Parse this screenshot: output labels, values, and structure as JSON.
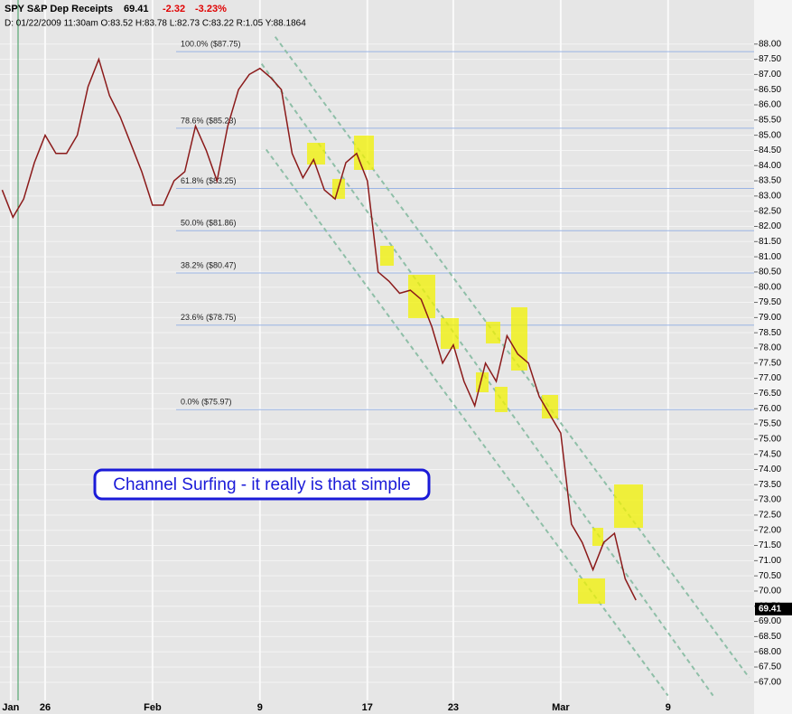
{
  "header": {
    "symbol": "SPY S&P Dep Receipts",
    "price": "69.41",
    "change": "-2.32",
    "change_pct": "-3.23%",
    "info": "D: 01/22/2009  11:30am  O:83.52  H:83.78  L:82.73  C:83.22  R:1.05  Y:88.1864"
  },
  "chart_data": {
    "type": "line",
    "annotation": "Channel Surfing - it really is that simple",
    "x": [
      -2,
      -1.5,
      -1,
      -0.5,
      0,
      0.5,
      1,
      1.5,
      2,
      2.5,
      3,
      3.5,
      4,
      4.5,
      5,
      5.5,
      6,
      6.5,
      7,
      7.5,
      8,
      8.5,
      9,
      9.5,
      10,
      10.5,
      11,
      11.5,
      12,
      12.5,
      13,
      13.5,
      14,
      14.5,
      15,
      15.5,
      16,
      16.5,
      17,
      17.5,
      18,
      18.5,
      19,
      19.5,
      20,
      20.5,
      21,
      21.5,
      22,
      22.5,
      23,
      23.5,
      24,
      24.5,
      25,
      25.5,
      26,
      26.5,
      27,
      27.5
    ],
    "values": [
      83.2,
      82.3,
      82.9,
      84.1,
      85.0,
      84.4,
      84.4,
      85.0,
      86.6,
      87.5,
      86.3,
      85.6,
      84.7,
      83.8,
      82.7,
      82.7,
      83.5,
      83.8,
      85.3,
      84.5,
      83.5,
      85.3,
      86.5,
      87.0,
      87.2,
      86.9,
      86.5,
      84.4,
      83.6,
      84.2,
      83.2,
      82.9,
      84.1,
      84.4,
      83.5,
      80.5,
      80.2,
      79.8,
      79.9,
      79.6,
      78.7,
      77.5,
      78.1,
      76.9,
      76.1,
      77.5,
      76.9,
      78.4,
      77.8,
      77.5,
      76.4,
      75.8,
      75.2,
      72.2,
      71.6,
      70.7,
      71.6,
      71.9,
      70.4,
      69.7
    ],
    "color": "#8b1a1a",
    "last": 69.41,
    "xlim": [
      -2.1,
      33
    ],
    "ylim": [
      66.4,
      88.35
    ],
    "xticks": [
      {
        "value": -1.6,
        "label": "Jan"
      },
      {
        "value": 0,
        "label": "26"
      },
      {
        "value": 5,
        "label": "Feb"
      },
      {
        "value": 10,
        "label": "9"
      },
      {
        "value": 15,
        "label": "17"
      },
      {
        "value": 19,
        "label": "23"
      },
      {
        "value": 24,
        "label": "Mar"
      },
      {
        "value": 29,
        "label": "9"
      }
    ],
    "yticks": [
      {
        "value": 67,
        "label": "67.00"
      },
      {
        "value": 67.5,
        "label": "67.50"
      },
      {
        "value": 68,
        "label": "68.00"
      },
      {
        "value": 68.5,
        "label": "68.50"
      },
      {
        "value": 69,
        "label": "69.00"
      },
      {
        "value": 69.5,
        "label": "69.50"
      },
      {
        "value": 70,
        "label": "70.00"
      },
      {
        "value": 70.5,
        "label": "70.50"
      },
      {
        "value": 71,
        "label": "71.00"
      },
      {
        "value": 71.5,
        "label": "71.50"
      },
      {
        "value": 72,
        "label": "72.00"
      },
      {
        "value": 72.5,
        "label": "72.50"
      },
      {
        "value": 73,
        "label": "73.00"
      },
      {
        "value": 73.5,
        "label": "73.50"
      },
      {
        "value": 74,
        "label": "74.00"
      },
      {
        "value": 74.5,
        "label": "74.50"
      },
      {
        "value": 75,
        "label": "75.00"
      },
      {
        "value": 75.5,
        "label": "75.50"
      },
      {
        "value": 76,
        "label": "76.00"
      },
      {
        "value": 76.5,
        "label": "76.50"
      },
      {
        "value": 77,
        "label": "77.00"
      },
      {
        "value": 77.5,
        "label": "77.50"
      },
      {
        "value": 78,
        "label": "78.00"
      },
      {
        "value": 78.5,
        "label": "78.50"
      },
      {
        "value": 79,
        "label": "79.00"
      },
      {
        "value": 79.5,
        "label": "79.50"
      },
      {
        "value": 80,
        "label": "80.00"
      },
      {
        "value": 80.5,
        "label": "80.50"
      },
      {
        "value": 81,
        "label": "81.00"
      },
      {
        "value": 81.5,
        "label": "81.50"
      },
      {
        "value": 82,
        "label": "82.00"
      },
      {
        "value": 82.5,
        "label": "82.50"
      },
      {
        "value": 83,
        "label": "83.00"
      },
      {
        "value": 83.5,
        "label": "83.50"
      },
      {
        "value": 84,
        "label": "84.00"
      },
      {
        "value": 84.5,
        "label": "84.50"
      },
      {
        "value": 85,
        "label": "85.00"
      },
      {
        "value": 85.5,
        "label": "85.50"
      },
      {
        "value": 86,
        "label": "86.00"
      },
      {
        "value": 86.5,
        "label": "86.50"
      },
      {
        "value": 87,
        "label": "87.00"
      },
      {
        "value": 87.5,
        "label": "87.50"
      },
      {
        "value": 88,
        "label": "88.00"
      }
    ],
    "fib_levels": [
      {
        "label": "100.0%  ($87.75)",
        "value": 87.75
      },
      {
        "label": "78.6%  ($85.23)",
        "value": 85.23
      },
      {
        "label": "61.8%  ($83.25)",
        "value": 83.25
      },
      {
        "label": "50.0%  ($81.86)",
        "value": 81.86
      },
      {
        "label": "38.2%  ($80.47)",
        "value": 80.47
      },
      {
        "label": "23.6%  ($78.75)",
        "value": 78.75
      },
      {
        "label": "0.0%  ($75.97)",
        "value": 75.97
      }
    ],
    "channels": [
      {
        "x": [
          10.71,
          32.77
        ],
        "y": [
          88.24,
          67.15
        ]
      },
      {
        "x": [
          10.08,
          31.09
        ],
        "y": [
          87.35,
          66.56
        ]
      },
      {
        "x": [
          10.29,
          28.99
        ],
        "y": [
          84.53,
          66.56
        ]
      }
    ],
    "grid": true
  }
}
